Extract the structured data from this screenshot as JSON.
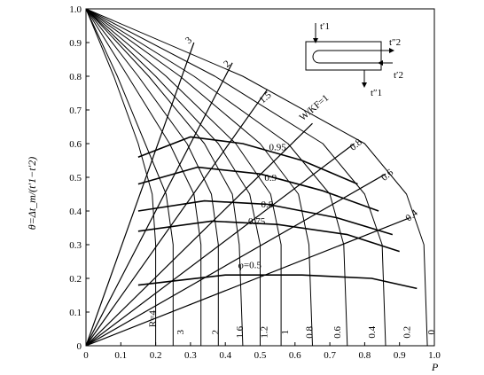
{
  "chart_data": {
    "type": "line",
    "title": "",
    "xlabel": "P",
    "ylabel": "θ=Δt_m/(t′1−t′2)",
    "xlim": [
      0,
      1.0
    ],
    "ylim": [
      0,
      1.0
    ],
    "x_ticks": [
      "0",
      "0.1",
      "0.2",
      "0.3",
      "0.4",
      "0.5",
      "0.6",
      "0.7",
      "0.8",
      "0.9",
      "1.0"
    ],
    "y_ticks": [
      "0",
      "0.1",
      "0.2",
      "0.3",
      "0.4",
      "0.5",
      "0.6",
      "0.7",
      "0.8",
      "0.9",
      "1.0"
    ],
    "grid": false,
    "r_curve_labels": [
      {
        "text": "R=4",
        "x": 0.2,
        "y": 0.08
      },
      {
        "text": "3",
        "x": 0.28,
        "y": 0.04
      },
      {
        "text": "2",
        "x": 0.38,
        "y": 0.04
      },
      {
        "text": "1.6",
        "x": 0.45,
        "y": 0.04
      },
      {
        "text": "1.2",
        "x": 0.52,
        "y": 0.04
      },
      {
        "text": "1",
        "x": 0.58,
        "y": 0.04
      },
      {
        "text": "0.8",
        "x": 0.65,
        "y": 0.04
      },
      {
        "text": "0.6",
        "x": 0.73,
        "y": 0.04
      },
      {
        "text": "0.4",
        "x": 0.83,
        "y": 0.04
      },
      {
        "text": "0.2",
        "x": 0.93,
        "y": 0.04
      },
      {
        "text": "0",
        "x": 1.0,
        "y": 0.04
      }
    ],
    "wkf_curve_labels": [
      {
        "text": "3",
        "x": 0.3,
        "y": 0.9
      },
      {
        "text": "2",
        "x": 0.41,
        "y": 0.83
      },
      {
        "text": "1.5",
        "x": 0.52,
        "y": 0.73
      },
      {
        "text": "W/KF=1",
        "x": 0.66,
        "y": 0.7
      },
      {
        "text": "0.8",
        "x": 0.78,
        "y": 0.59
      },
      {
        "text": "0.6",
        "x": 0.87,
        "y": 0.5
      },
      {
        "text": "0.4",
        "x": 0.94,
        "y": 0.38
      }
    ],
    "phi_curve_labels": [
      {
        "text": "0.95",
        "x": 0.55,
        "y": 0.58
      },
      {
        "text": "0.9",
        "x": 0.53,
        "y": 0.49
      },
      {
        "text": "0.8",
        "x": 0.52,
        "y": 0.41
      },
      {
        "text": "0.75",
        "x": 0.49,
        "y": 0.36
      },
      {
        "text": "φ=0.5",
        "x": 0.47,
        "y": 0.23
      }
    ],
    "series": [
      {
        "family": "R",
        "values": [
          [
            0.0,
            1.0
          ],
          [
            0.08,
            0.8
          ],
          [
            0.15,
            0.6
          ],
          [
            0.19,
            0.45
          ],
          [
            0.2,
            0.3
          ],
          [
            0.2,
            0.0
          ]
        ]
      },
      {
        "family": "R",
        "values": [
          [
            0.0,
            1.0
          ],
          [
            0.09,
            0.8
          ],
          [
            0.17,
            0.6
          ],
          [
            0.23,
            0.45
          ],
          [
            0.25,
            0.3
          ],
          [
            0.25,
            0.0
          ]
        ]
      },
      {
        "family": "R",
        "values": [
          [
            0.0,
            1.0
          ],
          [
            0.12,
            0.8
          ],
          [
            0.24,
            0.6
          ],
          [
            0.31,
            0.45
          ],
          [
            0.33,
            0.3
          ],
          [
            0.33,
            0.0
          ]
        ]
      },
      {
        "family": "R",
        "values": [
          [
            0.0,
            1.0
          ],
          [
            0.15,
            0.8
          ],
          [
            0.29,
            0.6
          ],
          [
            0.36,
            0.45
          ],
          [
            0.38,
            0.3
          ],
          [
            0.38,
            0.0
          ]
        ]
      },
      {
        "family": "R",
        "values": [
          [
            0.0,
            1.0
          ],
          [
            0.18,
            0.8
          ],
          [
            0.34,
            0.6
          ],
          [
            0.42,
            0.45
          ],
          [
            0.44,
            0.3
          ],
          [
            0.45,
            0.0
          ]
        ]
      },
      {
        "family": "R",
        "values": [
          [
            0.0,
            1.0
          ],
          [
            0.2,
            0.8
          ],
          [
            0.38,
            0.6
          ],
          [
            0.47,
            0.45
          ],
          [
            0.5,
            0.3
          ],
          [
            0.5,
            0.0
          ]
        ]
      },
      {
        "family": "R",
        "values": [
          [
            0.0,
            1.0
          ],
          [
            0.23,
            0.8
          ],
          [
            0.43,
            0.6
          ],
          [
            0.53,
            0.45
          ],
          [
            0.56,
            0.3
          ],
          [
            0.56,
            0.0
          ]
        ]
      },
      {
        "family": "R",
        "values": [
          [
            0.0,
            1.0
          ],
          [
            0.27,
            0.8
          ],
          [
            0.5,
            0.6
          ],
          [
            0.61,
            0.45
          ],
          [
            0.64,
            0.3
          ],
          [
            0.65,
            0.0
          ]
        ]
      },
      {
        "family": "R",
        "values": [
          [
            0.0,
            1.0
          ],
          [
            0.31,
            0.8
          ],
          [
            0.58,
            0.6
          ],
          [
            0.7,
            0.45
          ],
          [
            0.74,
            0.3
          ],
          [
            0.75,
            0.0
          ]
        ]
      },
      {
        "family": "R",
        "values": [
          [
            0.0,
            1.0
          ],
          [
            0.37,
            0.8
          ],
          [
            0.68,
            0.6
          ],
          [
            0.8,
            0.45
          ],
          [
            0.85,
            0.3
          ],
          [
            0.86,
            0.0
          ]
        ]
      },
      {
        "family": "R",
        "values": [
          [
            0.0,
            1.0
          ],
          [
            0.45,
            0.8
          ],
          [
            0.8,
            0.6
          ],
          [
            0.92,
            0.45
          ],
          [
            0.97,
            0.3
          ],
          [
            0.98,
            0.0
          ]
        ]
      },
      {
        "family": "W/KF",
        "values": [
          [
            0.0,
            0.0
          ],
          [
            0.31,
            0.9
          ]
        ]
      },
      {
        "family": "W/KF",
        "values": [
          [
            0.0,
            0.0
          ],
          [
            0.42,
            0.84
          ]
        ]
      },
      {
        "family": "W/KF",
        "values": [
          [
            0.0,
            0.0
          ],
          [
            0.52,
            0.76
          ]
        ]
      },
      {
        "family": "W/KF",
        "values": [
          [
            0.0,
            0.0
          ],
          [
            0.65,
            0.66
          ]
        ]
      },
      {
        "family": "W/KF",
        "values": [
          [
            0.0,
            0.0
          ],
          [
            0.77,
            0.6
          ]
        ]
      },
      {
        "family": "W/KF",
        "values": [
          [
            0.0,
            0.0
          ],
          [
            0.86,
            0.51
          ]
        ]
      },
      {
        "family": "W/KF",
        "values": [
          [
            0.0,
            0.0
          ],
          [
            0.93,
            0.38
          ]
        ]
      },
      {
        "family": "phi",
        "values": [
          [
            0.15,
            0.56
          ],
          [
            0.3,
            0.62
          ],
          [
            0.45,
            0.6
          ],
          [
            0.62,
            0.55
          ],
          [
            0.78,
            0.48
          ]
        ]
      },
      {
        "family": "phi",
        "values": [
          [
            0.15,
            0.48
          ],
          [
            0.32,
            0.53
          ],
          [
            0.5,
            0.51
          ],
          [
            0.68,
            0.46
          ],
          [
            0.84,
            0.4
          ]
        ]
      },
      {
        "family": "phi",
        "values": [
          [
            0.15,
            0.4
          ],
          [
            0.34,
            0.43
          ],
          [
            0.52,
            0.42
          ],
          [
            0.72,
            0.38
          ],
          [
            0.88,
            0.33
          ]
        ]
      },
      {
        "family": "phi",
        "values": [
          [
            0.15,
            0.34
          ],
          [
            0.36,
            0.37
          ],
          [
            0.55,
            0.36
          ],
          [
            0.75,
            0.33
          ],
          [
            0.9,
            0.28
          ]
        ]
      },
      {
        "family": "phi",
        "values": [
          [
            0.15,
            0.18
          ],
          [
            0.4,
            0.21
          ],
          [
            0.62,
            0.21
          ],
          [
            0.82,
            0.2
          ],
          [
            0.95,
            0.17
          ]
        ]
      }
    ]
  },
  "schematic": {
    "inlet_hot": "t′1",
    "outlet_hot": "t″1",
    "inlet_cold": "t′2",
    "outlet_cold": "t″2"
  }
}
